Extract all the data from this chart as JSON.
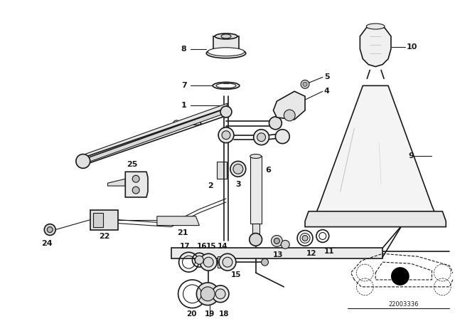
{
  "bg_color": "#ffffff",
  "line_color": "#1a1a1a",
  "fig_width": 6.4,
  "fig_height": 4.48,
  "dpi": 100,
  "diagram_code_text": "22003336"
}
